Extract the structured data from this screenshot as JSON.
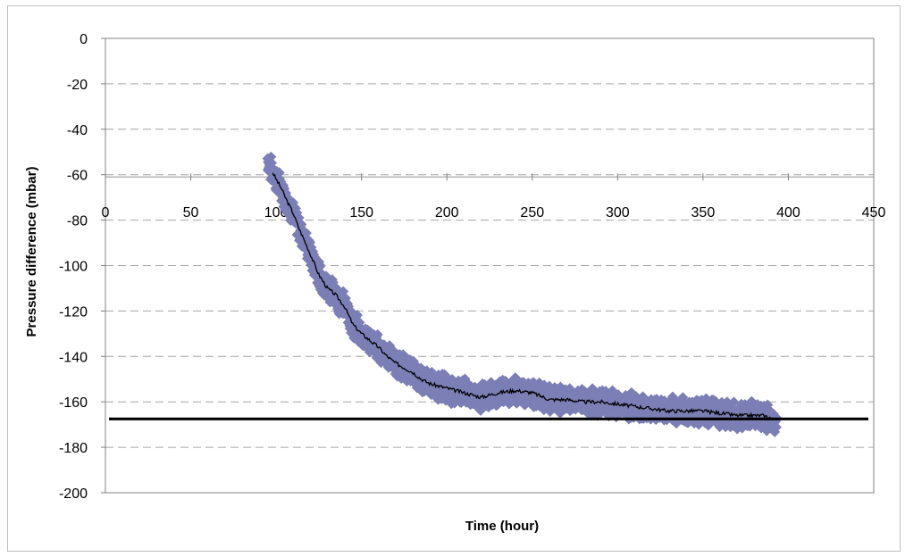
{
  "chart_data": {
    "type": "scatter",
    "xlabel": "Time (hour)",
    "ylabel": "Pressure difference (mbar)",
    "xlim": [
      0,
      450
    ],
    "ylim": [
      -200,
      0
    ],
    "x_ticks": [
      0,
      50,
      100,
      150,
      200,
      250,
      300,
      350,
      400,
      450
    ],
    "y_ticks": [
      0,
      -20,
      -40,
      -60,
      -80,
      -100,
      -120,
      -140,
      -160,
      -180,
      -200
    ],
    "grid": "horizontal-dashed",
    "x_axis_position": "y=-61",
    "series": [
      {
        "kind": "scatter-band",
        "color": "#7b7fb5",
        "spread": 5,
        "x": [
          95,
          97,
          100,
          103,
          106,
          110,
          113,
          116,
          120,
          125,
          130,
          135,
          140,
          145,
          150,
          155,
          160,
          165,
          170,
          175,
          180,
          185,
          190,
          195,
          200,
          210,
          220,
          230,
          240,
          250,
          260,
          270,
          280,
          290,
          300,
          310,
          320,
          330,
          340,
          350,
          360,
          370,
          380,
          385,
          390,
          393
        ],
        "y": [
          -53,
          -58,
          -62,
          -66,
          -71,
          -77,
          -83,
          -88,
          -95,
          -104,
          -110,
          -113,
          -118,
          -126,
          -130,
          -133,
          -136,
          -140,
          -143,
          -145,
          -147,
          -150,
          -152,
          -153,
          -154,
          -156,
          -158,
          -156,
          -155,
          -156,
          -159,
          -159,
          -160,
          -160,
          -161,
          -162,
          -163,
          -164,
          -164,
          -164,
          -165,
          -166,
          -166,
          -166,
          -167,
          -170
        ]
      },
      {
        "kind": "line",
        "color": "#000000",
        "x": [
          98,
          100,
          103,
          106,
          110,
          113,
          116,
          120,
          125,
          130,
          135,
          140,
          145,
          150,
          155,
          160,
          165,
          170,
          175,
          180,
          185,
          190,
          195,
          200,
          210,
          220,
          230,
          240,
          250,
          260,
          270,
          280,
          290,
          300,
          310,
          320,
          330,
          340,
          350,
          360,
          370,
          380,
          385,
          390
        ],
        "y": [
          -59,
          -62,
          -66,
          -71,
          -77,
          -83,
          -88,
          -95,
          -104,
          -110,
          -113,
          -118,
          -126,
          -130,
          -133,
          -136,
          -140,
          -143,
          -145,
          -147,
          -150,
          -152,
          -153,
          -154,
          -156,
          -158,
          -156,
          -155,
          -156,
          -159,
          -159,
          -160,
          -160,
          -161,
          -162,
          -163,
          -164,
          -164,
          -164,
          -165,
          -166,
          -166,
          -166,
          -167
        ]
      },
      {
        "kind": "reference-line",
        "color": "#000000",
        "y": -167.5,
        "x_range": [
          0,
          450
        ]
      }
    ]
  }
}
